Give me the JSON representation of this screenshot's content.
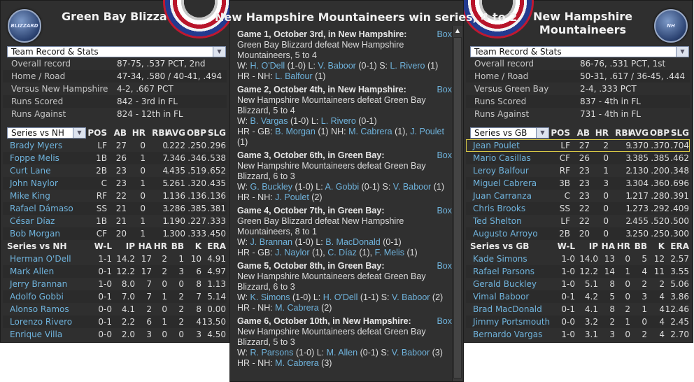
{
  "left": {
    "team_name": "Green Bay Blizzard",
    "logo_text": "BLIZZARD",
    "stats_select": "Team Record & Stats",
    "stats": [
      [
        "Overall record",
        "87-75, .537 PCT, 2nd"
      ],
      [
        "Home / Road",
        "47-34, .580 / 40-41, .494"
      ],
      [
        "Versus New Hampshire",
        "4-2, .667 PCT"
      ],
      [
        "Runs Scored",
        "842 - 3rd  in FL"
      ],
      [
        "Runs Against",
        "824 - 12th  in FL"
      ]
    ],
    "batting_select": "Series vs NH",
    "batting_cols": [
      "POS",
      "AB",
      "HR",
      "RBI",
      "AVG",
      "OBP",
      "SLG"
    ],
    "batting": [
      [
        "Brady Myers",
        "LF",
        "27",
        "0",
        "0",
        ".222",
        ".250",
        ".296"
      ],
      [
        "Foppe Melis",
        "1B",
        "26",
        "1",
        "7",
        ".346",
        ".346",
        ".538"
      ],
      [
        "Curt Lane",
        "2B",
        "23",
        "0",
        "4",
        ".435",
        ".519",
        ".652"
      ],
      [
        "John Naylor",
        "C",
        "23",
        "1",
        "5",
        ".261",
        ".320",
        ".435"
      ],
      [
        "Mike King",
        "RF",
        "22",
        "0",
        "1",
        ".136",
        ".136",
        ".136"
      ],
      [
        "Rafael Dámaso",
        "SS",
        "21",
        "0",
        "3",
        ".286",
        ".385",
        ".381"
      ],
      [
        "César Díaz",
        "1B",
        "21",
        "1",
        "1",
        ".190",
        ".227",
        ".333"
      ],
      [
        "Bob Morgan",
        "CF",
        "20",
        "1",
        "1",
        ".300",
        ".333",
        ".450"
      ]
    ],
    "pitching_title": "Series vs NH",
    "pitching_cols": [
      "W-L",
      "IP",
      "HA",
      "HR",
      "BB",
      "K",
      "ERA"
    ],
    "pitching": [
      [
        "Herman O'Dell",
        "1-1",
        "14.2",
        "17",
        "2",
        "1",
        "10",
        "4.91"
      ],
      [
        "Mark Allen",
        "0-1",
        "12.2",
        "17",
        "2",
        "3",
        "6",
        "4.97"
      ],
      [
        "Jerry Brannan",
        "1-0",
        "8.0",
        "7",
        "0",
        "0",
        "8",
        "1.13"
      ],
      [
        "Adolfo Gobbi",
        "0-1",
        "7.0",
        "7",
        "1",
        "2",
        "7",
        "5.14"
      ],
      [
        "Alonso Ramos",
        "0-0",
        "4.1",
        "2",
        "0",
        "2",
        "8",
        "0.00"
      ],
      [
        "Lorenzo Rivero",
        "0-1",
        "2.2",
        "6",
        "1",
        "2",
        "4",
        "13.50"
      ],
      [
        "Enrique Villa",
        "0-0",
        "2.0",
        "3",
        "0",
        "0",
        "3",
        "4.50"
      ]
    ]
  },
  "right": {
    "team_name": "New Hampshire Mountaineers",
    "logo_text": "NH",
    "stats_select": "Team Record & Stats",
    "stats": [
      [
        "Overall record",
        "86-76, .531 PCT, 1st"
      ],
      [
        "Home / Road",
        "50-31, .617 / 36-45, .444"
      ],
      [
        "Versus Green Bay",
        "2-4, .333 PCT"
      ],
      [
        "Runs Scored",
        "837 - 4th  in FL"
      ],
      [
        "Runs Against",
        "731 - 4th  in FL"
      ]
    ],
    "batting_select": "Series vs GB",
    "batting_cols": [
      "POS",
      "AB",
      "HR",
      "RBI",
      "AVG",
      "OBP",
      "SLG"
    ],
    "batting": [
      [
        "Jean Poulet",
        "LF",
        "27",
        "2",
        "9",
        ".370",
        ".370",
        ".704"
      ],
      [
        "Mario Casillas",
        "CF",
        "26",
        "0",
        "3",
        ".385",
        ".385",
        ".462"
      ],
      [
        "Leroy Balfour",
        "RF",
        "23",
        "1",
        "2",
        ".130",
        ".200",
        ".348"
      ],
      [
        "Miguel Cabrera",
        "3B",
        "23",
        "3",
        "3",
        ".304",
        ".360",
        ".696"
      ],
      [
        "Juan Carranza",
        "C",
        "23",
        "0",
        "1",
        ".217",
        ".280",
        ".391"
      ],
      [
        "Chris Brooks",
        "SS",
        "22",
        "0",
        "1",
        ".273",
        ".292",
        ".409"
      ],
      [
        "Ted Shelton",
        "LF",
        "22",
        "0",
        "2",
        ".455",
        ".520",
        ".500"
      ],
      [
        "Augusto Arroyo",
        "2B",
        "20",
        "0",
        "3",
        ".250",
        ".250",
        ".300"
      ]
    ],
    "selected_batter": 0,
    "pitching_title": "Series vs GB",
    "pitching_cols": [
      "W-L",
      "IP",
      "HA",
      "HR",
      "BB",
      "K",
      "ERA"
    ],
    "pitching": [
      [
        "Kade Simons",
        "1-0",
        "14.0",
        "13",
        "0",
        "5",
        "12",
        "2.57"
      ],
      [
        "Rafael Parsons",
        "1-0",
        "12.2",
        "14",
        "1",
        "4",
        "11",
        "3.55"
      ],
      [
        "Gerald Buckley",
        "1-0",
        "5.1",
        "8",
        "0",
        "2",
        "2",
        "5.06"
      ],
      [
        "Vimal Baboor",
        "0-1",
        "4.2",
        "5",
        "0",
        "3",
        "4",
        "3.86"
      ],
      [
        "Brad MacDonald",
        "0-1",
        "4.1",
        "8",
        "2",
        "1",
        "4",
        "12.46"
      ],
      [
        "Jimmy Portsmouth",
        "0-0",
        "3.2",
        "2",
        "1",
        "0",
        "4",
        "2.45"
      ],
      [
        "Bernardo Vargas",
        "1-0",
        "3.1",
        "3",
        "0",
        "2",
        "4",
        "2.70"
      ]
    ]
  },
  "center": {
    "title": "New Hampshire Mountaineers win series, 4 to 2",
    "box_label": "Box",
    "games": [
      {
        "head": "Game 1, October 3rd, in New Hampshire:",
        "result": "Green Bay Blizzard defeat New Hampshire Mountaineers, 5 to 4",
        "lines": [
          [
            [
              "W: ",
              0
            ],
            [
              "H. O'Dell",
              1
            ],
            [
              " (1-0) L: ",
              0
            ],
            [
              "V. Baboor",
              1
            ],
            [
              " (0-1) S: ",
              0
            ],
            [
              "L. Rivero",
              1
            ],
            [
              " (1)",
              0
            ]
          ],
          [
            [
              "HR - NH: ",
              0
            ],
            [
              "L. Balfour",
              1
            ],
            [
              " (1)",
              0
            ]
          ]
        ]
      },
      {
        "head": "Game 2, October 4th, in New Hampshire:",
        "result": "New Hampshire Mountaineers defeat Green Bay Blizzard, 5 to 4",
        "lines": [
          [
            [
              "W: ",
              0
            ],
            [
              "B. Vargas",
              1
            ],
            [
              " (1-0) L: ",
              0
            ],
            [
              "L. Rivero",
              1
            ],
            [
              " (0-1)",
              0
            ]
          ],
          [
            [
              "HR - GB: ",
              0
            ],
            [
              "B. Morgan",
              1
            ],
            [
              " (1)  NH: ",
              0
            ],
            [
              "M. Cabrera",
              1
            ],
            [
              " (1), ",
              0
            ],
            [
              "J. Poulet",
              1
            ],
            [
              " (1)",
              0
            ]
          ]
        ]
      },
      {
        "head": "Game 3, October 6th, in Green Bay:",
        "result": "New Hampshire Mountaineers defeat Green Bay Blizzard, 6 to 3",
        "lines": [
          [
            [
              "W: ",
              0
            ],
            [
              "G. Buckley",
              1
            ],
            [
              " (1-0) L: ",
              0
            ],
            [
              "A. Gobbi",
              1
            ],
            [
              " (0-1) S: ",
              0
            ],
            [
              "V. Baboor",
              1
            ],
            [
              " (1)",
              0
            ]
          ],
          [
            [
              "HR - NH: ",
              0
            ],
            [
              "J. Poulet",
              1
            ],
            [
              " (2)",
              0
            ]
          ]
        ]
      },
      {
        "head": "Game 4, October 7th, in Green Bay:",
        "result": "Green Bay Blizzard defeat New Hampshire Mountaineers, 8 to 1",
        "lines": [
          [
            [
              "W: ",
              0
            ],
            [
              "J. Brannan",
              1
            ],
            [
              " (1-0) L: ",
              0
            ],
            [
              "B. MacDonald",
              1
            ],
            [
              " (0-1)",
              0
            ]
          ],
          [
            [
              "HR - GB: ",
              0
            ],
            [
              "J. Naylor",
              1
            ],
            [
              " (1), ",
              0
            ],
            [
              "C. Díaz",
              1
            ],
            [
              " (1), ",
              0
            ],
            [
              "F. Melis",
              1
            ],
            [
              " (1)",
              0
            ]
          ]
        ]
      },
      {
        "head": "Game 5, October 8th, in Green Bay:",
        "result": "New Hampshire Mountaineers defeat Green Bay Blizzard, 6 to 3",
        "lines": [
          [
            [
              "W: ",
              0
            ],
            [
              "K. Simons",
              1
            ],
            [
              " (1-0) L: ",
              0
            ],
            [
              "H. O'Dell",
              1
            ],
            [
              " (1-1) S: ",
              0
            ],
            [
              "V. Baboor",
              1
            ],
            [
              " (2)",
              0
            ]
          ],
          [
            [
              "HR - NH: ",
              0
            ],
            [
              "M. Cabrera",
              1
            ],
            [
              " (2)",
              0
            ]
          ]
        ]
      },
      {
        "head": "Game 6, October 10th, in New Hampshire:",
        "result": "New Hampshire Mountaineers defeat Green Bay Blizzard, 5 to 3",
        "lines": [
          [
            [
              "W: ",
              0
            ],
            [
              "R. Parsons",
              1
            ],
            [
              " (1-0) L: ",
              0
            ],
            [
              "M. Allen",
              1
            ],
            [
              " (0-1) S: ",
              0
            ],
            [
              "V. Baboor",
              1
            ],
            [
              " (3)",
              0
            ]
          ],
          [
            [
              "HR - NH: ",
              0
            ],
            [
              "M. Cabrera",
              1
            ],
            [
              " (3)",
              0
            ]
          ]
        ]
      }
    ]
  },
  "colors": {
    "link": "#6fb3dc",
    "panel": "#2f2f2f",
    "highlight": "#d8c846"
  },
  "icons": {
    "dropdown": "chevron-down-icon",
    "scroll_up": "scroll-up-arrow-icon"
  }
}
